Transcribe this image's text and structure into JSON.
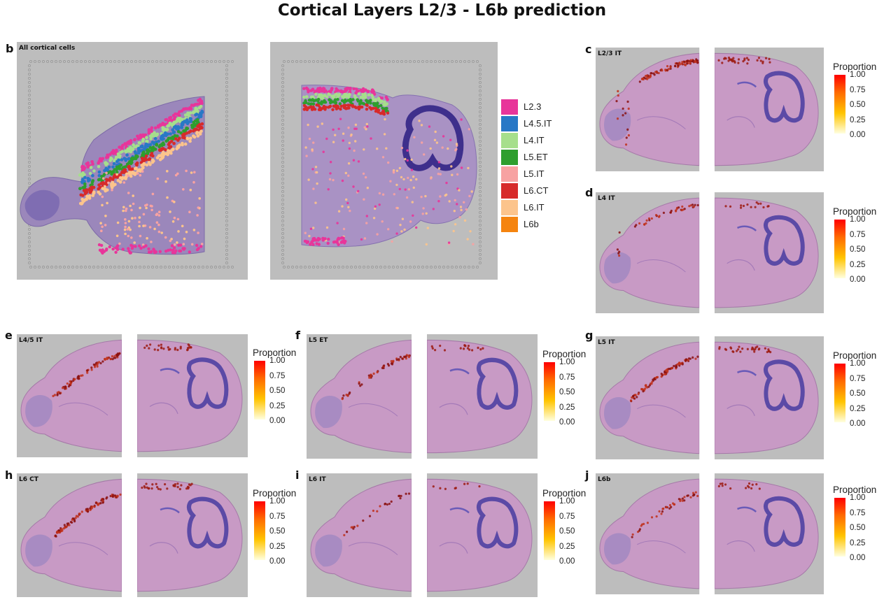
{
  "title": "Cortical Layers L2/3 - L6b prediction",
  "panel_b": {
    "letter": "b",
    "label": "All cortical cells"
  },
  "legend": {
    "items": [
      {
        "label": "L2.3",
        "color": "#e8359a"
      },
      {
        "label": "L4.5.IT",
        "color": "#2878c6"
      },
      {
        "label": "L4.IT",
        "color": "#a6df8c"
      },
      {
        "label": "L5.ET",
        "color": "#2e9e2e"
      },
      {
        "label": "L5.IT",
        "color": "#f7a2a2"
      },
      {
        "label": "L6.CT",
        "color": "#d72a2a"
      },
      {
        "label": "L6.IT",
        "color": "#fcc48c"
      },
      {
        "label": "L6b",
        "color": "#f5840f"
      }
    ]
  },
  "colorbar": {
    "title": "Proportion",
    "ticks": [
      "1.00",
      "0.75",
      "0.50",
      "0.25",
      "0.00"
    ],
    "high_color": "#ff0000",
    "low_color": "#ffffe0"
  },
  "panels": [
    {
      "id": "c",
      "letter": "c",
      "label": "L2/3 IT"
    },
    {
      "id": "d",
      "letter": "d",
      "label": "L4 IT"
    },
    {
      "id": "e",
      "letter": "e",
      "label": "L4/5 IT"
    },
    {
      "id": "f",
      "letter": "f",
      "label": "L5 ET"
    },
    {
      "id": "g",
      "letter": "g",
      "label": "L5 IT"
    },
    {
      "id": "h",
      "letter": "h",
      "label": "L6 CT"
    },
    {
      "id": "i",
      "letter": "i",
      "label": "L6 IT"
    },
    {
      "id": "j",
      "letter": "j",
      "label": "L6b"
    }
  ]
}
